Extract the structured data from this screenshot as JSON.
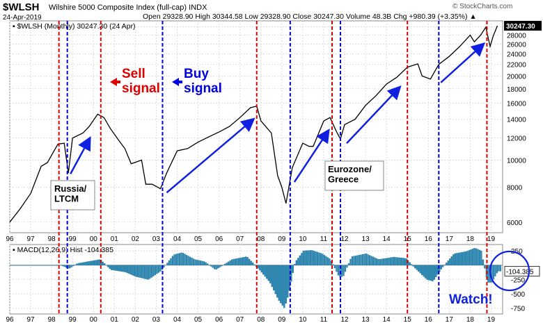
{
  "header": {
    "symbol": "$WLSH",
    "name": "Wilshire 5000 Composite Index (full-cap)",
    "exchange": "INDX",
    "date": "24-Apr-2019",
    "ohlc": "Open 29328.90  High 30344.58  Low 29328.90  Close 30247.30  Volume 48.3B  Chg +980.39 (+3.35%) ▲",
    "copyright": "© StockCharts.com"
  },
  "chart_data": [
    {
      "type": "line",
      "legend": "$WLSH (Monthly) 30247.30 (24 Apr)",
      "last_value": "30247.30",
      "scale": "log",
      "ylim": [
        5500,
        31500
      ],
      "yticks": [
        6000,
        8000,
        10000,
        12000,
        14000,
        16000,
        18000,
        20000,
        22000,
        24000,
        26000,
        28000,
        30000
      ],
      "x_labels": [
        "96",
        "97",
        "98",
        "99",
        "00",
        "01",
        "02",
        "03",
        "04",
        "05",
        "06",
        "07",
        "08",
        "09",
        "10",
        "11",
        "12",
        "13",
        "14",
        "15",
        "16",
        "17",
        "18",
        "19"
      ],
      "series": [
        {
          "x": [
            1996.0,
            1996.5,
            1997.0,
            1997.5,
            1997.8,
            1998.3,
            1998.6,
            1998.8,
            1999.0,
            1999.5,
            1999.8,
            2000.2,
            2000.5,
            2000.8,
            2001.2,
            2001.5,
            2001.8,
            2002.3,
            2002.5,
            2002.8,
            2003.2,
            2003.5,
            2004.0,
            2004.5,
            2005.0,
            2005.5,
            2006.0,
            2006.5,
            2007.0,
            2007.5,
            2007.8,
            2008.0,
            2008.5,
            2008.8,
            2009.0,
            2009.2,
            2009.5,
            2010.0,
            2010.3,
            2010.5,
            2011.0,
            2011.3,
            2011.6,
            2011.8,
            2012.0,
            2012.5,
            2013.0,
            2013.5,
            2014.0,
            2014.5,
            2015.0,
            2015.5,
            2015.7,
            2016.1,
            2016.5,
            2017.0,
            2017.5,
            2018.0,
            2018.2,
            2018.5,
            2018.75,
            2018.95,
            2019.1,
            2019.3
          ],
          "values": [
            6000,
            6700,
            7600,
            9500,
            9800,
            11400,
            11500,
            9000,
            12000,
            12500,
            13200,
            14600,
            14200,
            13000,
            11800,
            11000,
            9700,
            10000,
            8200,
            8200,
            7900,
            9000,
            10800,
            11000,
            11600,
            12100,
            12600,
            13200,
            14200,
            15400,
            15600,
            13800,
            12500,
            8800,
            8000,
            7000,
            9400,
            11500,
            11200,
            11200,
            13800,
            14200,
            12700,
            11900,
            13400,
            14000,
            15700,
            17000,
            18700,
            19800,
            21500,
            22100,
            20000,
            19500,
            22000,
            23500,
            25500,
            28000,
            26500,
            28000,
            29900,
            25500,
            27800,
            30247
          ]
        }
      ],
      "annotations": [
        {
          "text": "Sell\nsignal",
          "color": "#e00000"
        },
        {
          "text": "Buy\nsignal",
          "color": "#0000e0"
        },
        {
          "text": "Russia/\nLTCM"
        },
        {
          "text": "Eurozone/\nGreece"
        }
      ]
    },
    {
      "type": "bar",
      "legend": "MACD(12,26,9) Hist -104.385",
      "last_value": "-104.385",
      "ylim": [
        -850,
        360
      ],
      "yticks": [
        250,
        -250,
        -500,
        -750
      ],
      "x_labels": [
        "96",
        "97",
        "98",
        "99",
        "00",
        "01",
        "02",
        "03",
        "04",
        "05",
        "06",
        "07",
        "08",
        "09",
        "10",
        "11",
        "12",
        "13",
        "14",
        "15",
        "16",
        "17",
        "18",
        "19"
      ],
      "x": [
        1996.0,
        1998.4,
        1998.8,
        1999.2,
        2000.3,
        2000.8,
        2001.5,
        2002.0,
        2002.6,
        2003.2,
        2003.8,
        2004.2,
        2004.8,
        2005.3,
        2005.8,
        2006.6,
        2007.3,
        2007.9,
        2008.4,
        2008.8,
        2009.1,
        2009.3,
        2009.6,
        2010.0,
        2010.4,
        2010.9,
        2011.3,
        2011.7,
        2011.9,
        2012.3,
        2013.0,
        2013.6,
        2014.3,
        2014.9,
        2015.3,
        2015.9,
        2016.2,
        2016.6,
        2017.2,
        2017.8,
        2018.2,
        2018.5,
        2018.8,
        2019.0,
        2019.3
      ],
      "values": [
        0,
        0,
        -60,
        30,
        100,
        -80,
        -120,
        -200,
        -250,
        -100,
        180,
        220,
        100,
        60,
        -80,
        100,
        150,
        -80,
        -300,
        -600,
        -750,
        -500,
        50,
        250,
        260,
        200,
        100,
        -200,
        -200,
        150,
        200,
        100,
        140,
        120,
        -40,
        -250,
        -280,
        -60,
        200,
        240,
        300,
        250,
        -300,
        -300,
        -104
      ],
      "label": "Watch!"
    }
  ],
  "signal_lines": [
    {
      "date": 1998.35,
      "color": "#e00000"
    },
    {
      "date": 1998.75,
      "color": "#0000dd"
    },
    {
      "date": 2000.35,
      "color": "#e00000"
    },
    {
      "date": 2003.3,
      "color": "#0000dd"
    },
    {
      "date": 2007.8,
      "color": "#e00000"
    },
    {
      "date": 2009.4,
      "color": "#0000dd"
    },
    {
      "date": 2011.4,
      "color": "#e00000"
    },
    {
      "date": 2011.8,
      "color": "#0000dd"
    },
    {
      "date": 2015.0,
      "color": "#e00000"
    },
    {
      "date": 2016.5,
      "color": "#0000dd"
    },
    {
      "date": 2018.8,
      "color": "#e00000"
    }
  ],
  "colors": {
    "price": "#000000",
    "hist": "#2a8ab8",
    "grid": "#dddddd",
    "axis": "#888888"
  }
}
